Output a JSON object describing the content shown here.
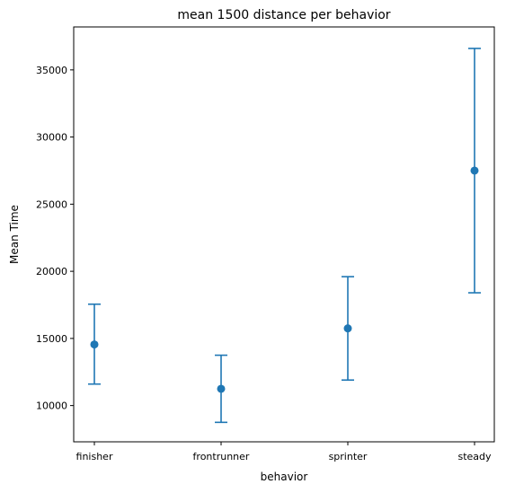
{
  "chart_data": {
    "type": "scatter",
    "title": "mean 1500 distance per behavior",
    "xlabel": "behavior",
    "ylabel": "Mean Time",
    "categories": [
      "finisher",
      "frontrunner",
      "sprinter",
      "steady"
    ],
    "values": [
      14550,
      11250,
      15750,
      27500
    ],
    "error_low": [
      11600,
      8750,
      11900,
      18400
    ],
    "error_high": [
      17550,
      13750,
      19600,
      36600
    ],
    "ylim": [
      7300,
      38200
    ],
    "yticks": [
      10000,
      15000,
      20000,
      25000,
      30000,
      35000
    ],
    "grid": false,
    "legend": "none",
    "color": "#1f77b4"
  }
}
